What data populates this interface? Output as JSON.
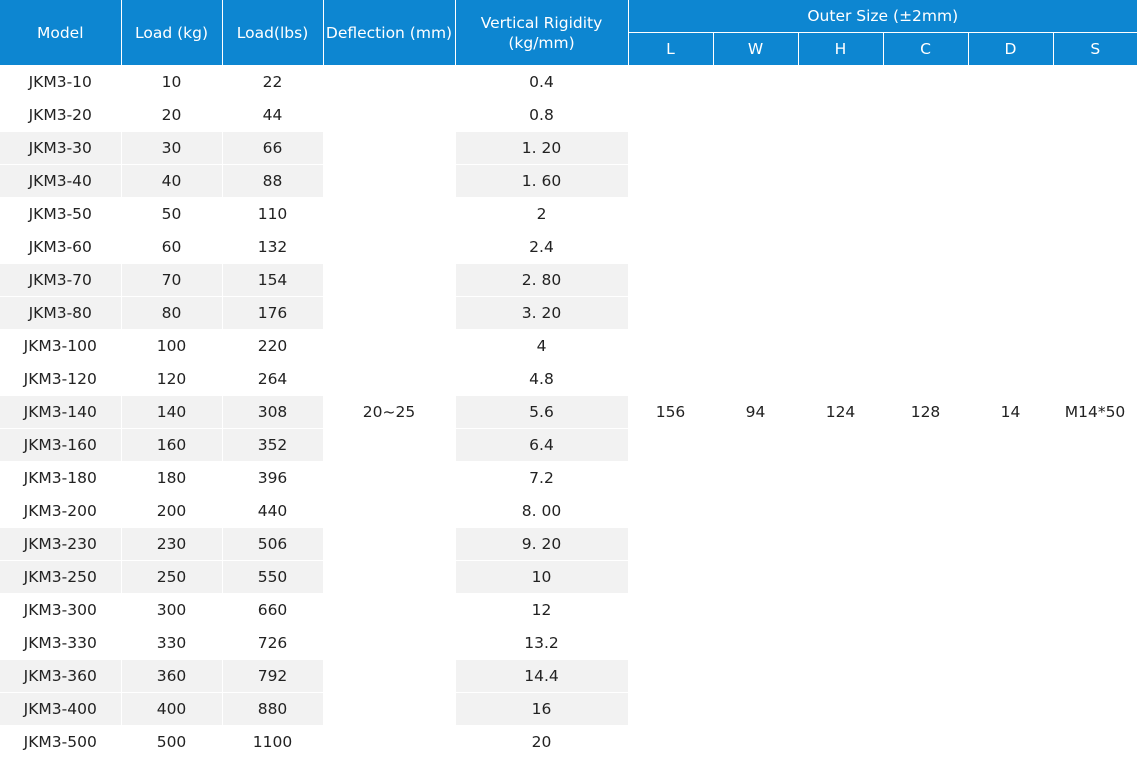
{
  "header": {
    "model": "Model",
    "load_kg": "Load (kg)",
    "load_lbs": "Load(lbs)",
    "deflection": "Deflection (mm)",
    "rigidity_line1": "Vertical Rigidity",
    "rigidity_line2": "(kg/mm)",
    "outer_size": "Outer Size (±2mm)",
    "sub": [
      "L",
      "W",
      "H",
      "C",
      "D",
      "S"
    ]
  },
  "rows": [
    {
      "model": "JKM3-10",
      "kg": "10",
      "lbs": "22",
      "rigidity": "0.4"
    },
    {
      "model": "JKM3-20",
      "kg": "20",
      "lbs": "44",
      "rigidity": "0.8"
    },
    {
      "model": "JKM3-30",
      "kg": "30",
      "lbs": "66",
      "rigidity": "1. 20"
    },
    {
      "model": "JKM3-40",
      "kg": "40",
      "lbs": "88",
      "rigidity": "1. 60"
    },
    {
      "model": "JKM3-50",
      "kg": "50",
      "lbs": "110",
      "rigidity": "2"
    },
    {
      "model": "JKM3-60",
      "kg": "60",
      "lbs": "132",
      "rigidity": "2.4"
    },
    {
      "model": "JKM3-70",
      "kg": "70",
      "lbs": "154",
      "rigidity": "2. 80"
    },
    {
      "model": "JKM3-80",
      "kg": "80",
      "lbs": "176",
      "rigidity": "3. 20"
    },
    {
      "model": "JKM3-100",
      "kg": "100",
      "lbs": "220",
      "rigidity": "4"
    },
    {
      "model": "JKM3-120",
      "kg": "120",
      "lbs": "264",
      "rigidity": "4.8"
    },
    {
      "model": "JKM3-140",
      "kg": "140",
      "lbs": "308",
      "rigidity": "5.6"
    },
    {
      "model": "JKM3-160",
      "kg": "160",
      "lbs": "352",
      "rigidity": "6.4"
    },
    {
      "model": "JKM3-180",
      "kg": "180",
      "lbs": "396",
      "rigidity": "7.2"
    },
    {
      "model": "JKM3-200",
      "kg": "200",
      "lbs": "440",
      "rigidity": "8. 00"
    },
    {
      "model": "JKM3-230",
      "kg": "230",
      "lbs": "506",
      "rigidity": "9. 20"
    },
    {
      "model": "JKM3-250",
      "kg": "250",
      "lbs": "550",
      "rigidity": "10"
    },
    {
      "model": "JKM3-300",
      "kg": "300",
      "lbs": "660",
      "rigidity": "12"
    },
    {
      "model": "JKM3-330",
      "kg": "330",
      "lbs": "726",
      "rigidity": "13.2"
    },
    {
      "model": "JKM3-360",
      "kg": "360",
      "lbs": "792",
      "rigidity": "14.4"
    },
    {
      "model": "JKM3-400",
      "kg": "400",
      "lbs": "880",
      "rigidity": "16"
    },
    {
      "model": "JKM3-500",
      "kg": "500",
      "lbs": "1100",
      "rigidity": "20"
    }
  ],
  "shared": {
    "deflection": "20~25",
    "L": "156",
    "W": "94",
    "H": "124",
    "C": "128",
    "D": "14",
    "S": "M14*50"
  },
  "colors": {
    "header_bg": "#0d86d1",
    "zebra_bg": "#f2f2f2"
  }
}
